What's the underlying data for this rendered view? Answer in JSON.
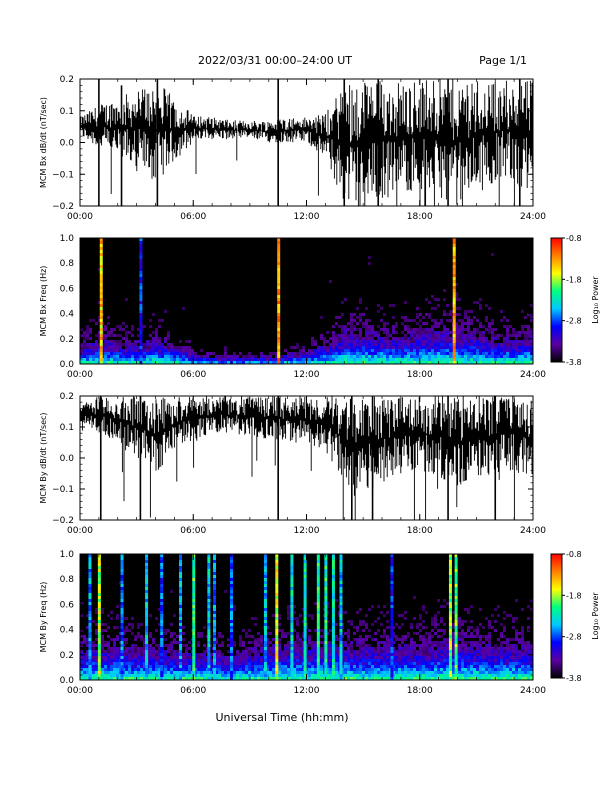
{
  "header": {
    "title": "2022/03/31  00:00–24:00 UT",
    "page": "Page 1/1"
  },
  "xlabel": "Universal Time (hh:mm)",
  "colorbar": {
    "label": "Log₁₀ Power",
    "ticks": [
      "-0.8",
      "-1.8",
      "-2.8",
      "-3.8"
    ],
    "tick_values": [
      -0.8,
      -1.8,
      -2.8,
      -3.8
    ],
    "range": [
      -3.8,
      -0.8
    ],
    "colors": [
      "#000000",
      "#5a00a0",
      "#0000ff",
      "#00c8ff",
      "#00ff80",
      "#ffff00",
      "#ff8000",
      "#ff0000"
    ]
  },
  "chart_data": [
    {
      "type": "line",
      "ylabel": "MCM Bx dB/dt (nT/sec)",
      "xlim": [
        0,
        24
      ],
      "ylim": [
        -0.2,
        0.2
      ],
      "xticks": [
        "00:00",
        "06:00",
        "12:00",
        "18:00",
        "24:00"
      ],
      "yticks": [
        "0.2",
        "0.1",
        "0.0",
        "−0.1",
        "−0.2"
      ],
      "ytick_values": [
        0.2,
        0.1,
        0.0,
        -0.1,
        -0.2
      ],
      "color": "#000000",
      "hours": [
        0,
        1,
        2,
        3,
        4,
        5,
        6,
        7,
        8,
        9,
        10,
        11,
        12,
        13,
        14,
        15,
        16,
        17,
        18,
        19,
        20,
        21,
        22,
        23,
        24
      ],
      "y_upper": [
        0.08,
        0.12,
        0.14,
        0.17,
        0.2,
        0.14,
        0.09,
        0.08,
        0.07,
        0.07,
        0.07,
        0.08,
        0.08,
        0.09,
        0.2,
        0.2,
        0.2,
        0.2,
        0.2,
        0.2,
        0.2,
        0.2,
        0.2,
        0.2,
        0.2
      ],
      "y_lower": [
        0.02,
        -0.02,
        -0.05,
        -0.08,
        -0.13,
        -0.06,
        0.0,
        0.01,
        0.01,
        0.01,
        0.0,
        0.0,
        0.0,
        -0.05,
        -0.2,
        -0.2,
        -0.18,
        -0.16,
        -0.15,
        -0.17,
        -0.2,
        -0.16,
        -0.13,
        -0.12,
        -0.18
      ],
      "spikes": [
        {
          "hour": 1.0,
          "min": -0.2,
          "max": 0.2
        },
        {
          "hour": 2.2,
          "min": -0.2,
          "max": 0.18
        },
        {
          "hour": 4.1,
          "min": -0.2,
          "max": 0.2
        },
        {
          "hour": 10.5,
          "min": -0.2,
          "max": 0.2
        },
        {
          "hour": 14.0,
          "min": -0.2,
          "max": 0.2
        },
        {
          "hour": 15.8,
          "min": -0.2,
          "max": 0.2
        },
        {
          "hour": 19.5,
          "min": -0.2,
          "max": 0.2
        },
        {
          "hour": 23.3,
          "min": -0.2,
          "max": 0.2
        }
      ]
    },
    {
      "type": "heatmap",
      "ylabel": "MCM Bx Freq (Hz)",
      "xlim": [
        0,
        24
      ],
      "ylim": [
        0.0,
        1.0
      ],
      "xticks": [
        "00:00",
        "06:00",
        "12:00",
        "18:00",
        "24:00"
      ],
      "yticks": [
        "1.0",
        "0.8",
        "0.6",
        "0.4",
        "0.2",
        "0.0"
      ],
      "ytick_values": [
        1.0,
        0.8,
        0.6,
        0.4,
        0.2,
        0.0
      ],
      "activity_hours": [
        0,
        1,
        2,
        3,
        4,
        5,
        6,
        7,
        8,
        9,
        10,
        11,
        12,
        13,
        14,
        15,
        16,
        17,
        18,
        19,
        20,
        21,
        22,
        23,
        24
      ],
      "activity_height": [
        0.3,
        0.45,
        0.35,
        0.3,
        0.4,
        0.3,
        0.15,
        0.1,
        0.1,
        0.1,
        0.1,
        0.15,
        0.2,
        0.35,
        0.55,
        0.55,
        0.5,
        0.5,
        0.55,
        0.6,
        0.6,
        0.5,
        0.45,
        0.45,
        0.5
      ],
      "spikes": [
        {
          "hour": 1.1,
          "level": -1.2
        },
        {
          "hour": 10.5,
          "level": -1.0
        },
        {
          "hour": 19.8,
          "level": -1.1
        },
        {
          "hour": 3.2,
          "level": -2.6
        }
      ]
    },
    {
      "type": "line",
      "ylabel": "MCM By dB/dt (nT/sec)",
      "xlim": [
        0,
        24
      ],
      "ylim": [
        -0.2,
        0.2
      ],
      "xticks": [
        "00:00",
        "06:00",
        "12:00",
        "18:00",
        "24:00"
      ],
      "yticks": [
        "0.2",
        "0.1",
        "0.0",
        "−0.1",
        "−0.2"
      ],
      "ytick_values": [
        0.2,
        0.1,
        0.0,
        -0.1,
        -0.2
      ],
      "color": "#000000",
      "hours": [
        0,
        1,
        2,
        3,
        4,
        5,
        6,
        7,
        8,
        9,
        10,
        11,
        12,
        13,
        14,
        15,
        16,
        17,
        18,
        19,
        20,
        21,
        22,
        23,
        24
      ],
      "y_upper": [
        0.17,
        0.2,
        0.2,
        0.2,
        0.2,
        0.2,
        0.2,
        0.2,
        0.2,
        0.2,
        0.2,
        0.2,
        0.2,
        0.2,
        0.2,
        0.2,
        0.2,
        0.2,
        0.2,
        0.2,
        0.2,
        0.2,
        0.2,
        0.2,
        0.2
      ],
      "y_lower": [
        0.12,
        0.08,
        0.04,
        0.0,
        -0.05,
        0.02,
        0.06,
        0.08,
        0.08,
        0.07,
        0.06,
        0.05,
        0.05,
        0.02,
        -0.08,
        -0.12,
        -0.08,
        -0.06,
        -0.04,
        -0.06,
        -0.1,
        -0.07,
        -0.05,
        -0.04,
        -0.08
      ],
      "spikes": [
        {
          "hour": 1.1,
          "min": -0.2,
          "max": 0.2
        },
        {
          "hour": 3.2,
          "min": -0.2,
          "max": 0.2
        },
        {
          "hour": 10.5,
          "min": -0.2,
          "max": 0.2
        },
        {
          "hour": 14.4,
          "min": -0.2,
          "max": 0.2
        },
        {
          "hour": 15.5,
          "min": -0.2,
          "max": 0.2
        },
        {
          "hour": 19.5,
          "min": -0.2,
          "max": 0.2
        },
        {
          "hour": 22.0,
          "min": -0.2,
          "max": 0.2
        }
      ]
    },
    {
      "type": "heatmap",
      "ylabel": "MCM By Freq (Hz)",
      "xlim": [
        0,
        24
      ],
      "ylim": [
        0.0,
        1.0
      ],
      "xticks": [
        "00:00",
        "06:00",
        "12:00",
        "18:00",
        "24:00"
      ],
      "yticks": [
        "1.0",
        "0.8",
        "0.6",
        "0.4",
        "0.2",
        "0.0"
      ],
      "ytick_values": [
        1.0,
        0.8,
        0.6,
        0.4,
        0.2,
        0.0
      ],
      "activity_hours": [
        0,
        1,
        2,
        3,
        4,
        5,
        6,
        7,
        8,
        9,
        10,
        11,
        12,
        13,
        14,
        15,
        16,
        17,
        18,
        19,
        20,
        21,
        22,
        23,
        24
      ],
      "activity_height": [
        0.6,
        0.6,
        0.6,
        0.55,
        0.55,
        0.5,
        0.5,
        0.45,
        0.45,
        0.5,
        0.55,
        0.6,
        0.6,
        0.65,
        0.65,
        0.6,
        0.6,
        0.6,
        0.6,
        0.65,
        0.7,
        0.65,
        0.6,
        0.6,
        0.6
      ],
      "spikes": [
        {
          "hour": 0.5,
          "level": -2.3
        },
        {
          "hour": 1.0,
          "level": -1.5
        },
        {
          "hour": 2.2,
          "level": -2.4
        },
        {
          "hour": 3.5,
          "level": -2.2
        },
        {
          "hour": 4.3,
          "level": -2.5
        },
        {
          "hour": 5.3,
          "level": -2.3
        },
        {
          "hour": 6.0,
          "level": -1.8
        },
        {
          "hour": 6.8,
          "level": -2.2
        },
        {
          "hour": 7.1,
          "level": -2.3
        },
        {
          "hour": 8.0,
          "level": -2.5
        },
        {
          "hour": 9.8,
          "level": -2.2
        },
        {
          "hour": 10.4,
          "level": -1.4
        },
        {
          "hour": 11.2,
          "level": -2.1
        },
        {
          "hour": 11.9,
          "level": -2.0
        },
        {
          "hour": 12.6,
          "level": -1.9
        },
        {
          "hour": 13.0,
          "level": -1.9
        },
        {
          "hour": 13.4,
          "level": -2.0
        },
        {
          "hour": 13.8,
          "level": -2.2
        },
        {
          "hour": 16.5,
          "level": -2.6
        },
        {
          "hour": 19.6,
          "level": -1.6
        },
        {
          "hour": 19.9,
          "level": -1.7
        }
      ]
    }
  ]
}
